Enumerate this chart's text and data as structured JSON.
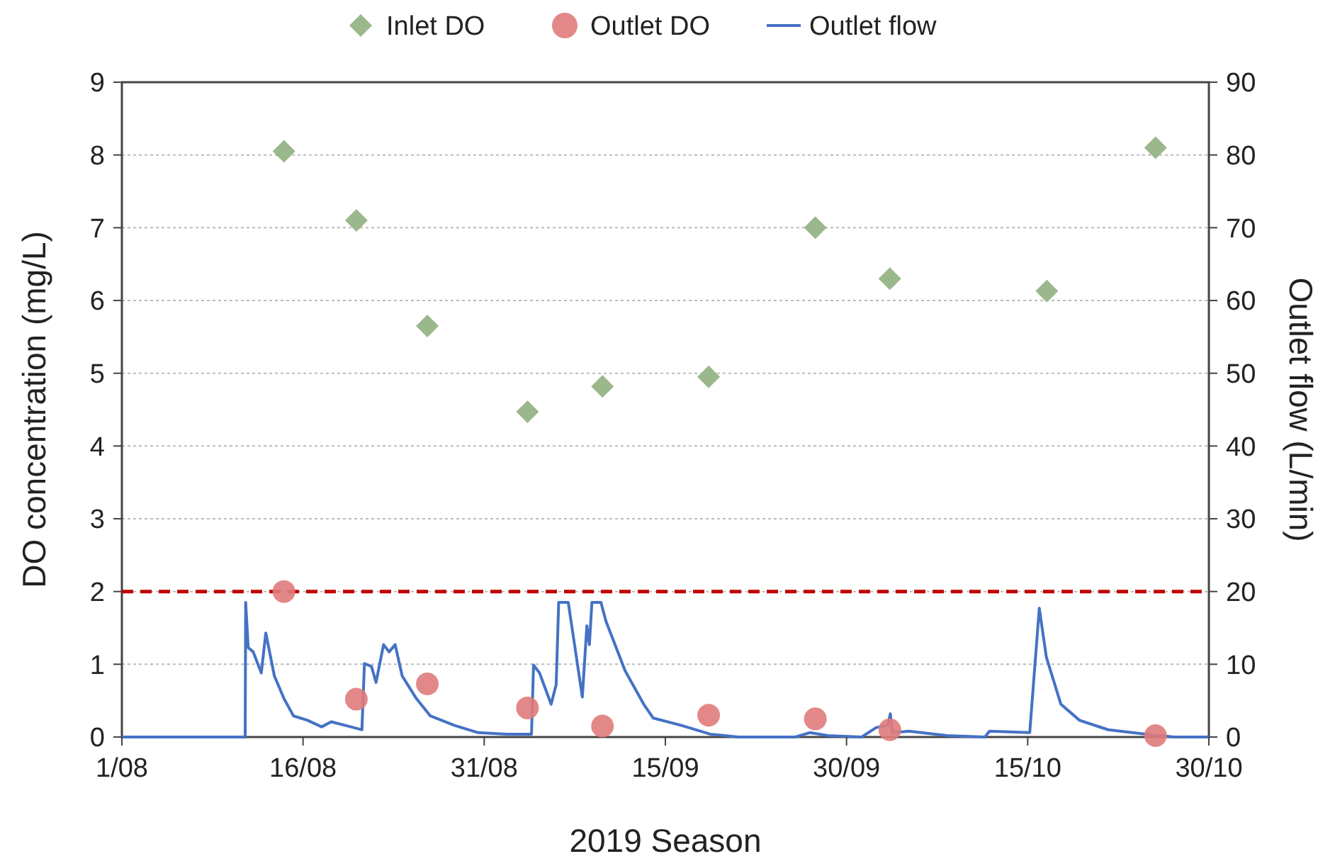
{
  "chart_data": {
    "type": "scatter",
    "xlabel": "2019 Season",
    "ylabel": "DO concentration (mg/L)",
    "y2label": "Outlet flow (L/min)",
    "xlim": [
      "2019-08-01",
      "2019-10-30"
    ],
    "xticks": [
      {
        "value": "2019-08-01",
        "label": "1/08"
      },
      {
        "value": "2019-08-16",
        "label": "16/08"
      },
      {
        "value": "2019-08-31",
        "label": "31/08"
      },
      {
        "value": "2019-09-15",
        "label": "15/09"
      },
      {
        "value": "2019-09-30",
        "label": "30/09"
      },
      {
        "value": "2019-10-15",
        "label": "15/10"
      },
      {
        "value": "2019-10-30",
        "label": "30/10"
      }
    ],
    "ylim": [
      0,
      9
    ],
    "yticks": [
      0,
      1,
      2,
      3,
      4,
      5,
      6,
      7,
      8,
      9
    ],
    "y2lim": [
      0,
      90
    ],
    "y2ticks": [
      0,
      10,
      20,
      30,
      40,
      50,
      60,
      70,
      80,
      90
    ],
    "grid": "y",
    "legend": "top",
    "ref_lines": [
      {
        "axis": "y",
        "value": 2,
        "color": "#c00000",
        "line_style": "dashed"
      }
    ],
    "series": [
      {
        "name": "Inlet DO",
        "marker": "diamond",
        "color": "#9bb88c",
        "x": [
          "2019-08-14T10:00",
          "2019-08-20T10:00",
          "2019-08-26T07:00",
          "2019-09-03T14:00",
          "2019-09-09T19:00",
          "2019-09-18T14:00",
          "2019-09-27T10:00",
          "2019-10-03T14:00",
          "2019-10-16T14:00",
          "2019-10-25T14:00"
        ],
        "values": [
          8.05,
          7.1,
          5.65,
          4.47,
          4.82,
          4.95,
          7.0,
          6.3,
          6.13,
          8.1
        ]
      },
      {
        "name": "Outlet DO",
        "marker": "circle",
        "color": "#e07b7b",
        "x": [
          "2019-08-14T10:00",
          "2019-08-20T10:00",
          "2019-08-26T07:00",
          "2019-09-03T14:00",
          "2019-09-09T19:00",
          "2019-09-18T14:00",
          "2019-09-27T10:00",
          "2019-10-03T14:00",
          "2019-10-25T14:00"
        ],
        "values": [
          2.0,
          0.52,
          0.73,
          0.4,
          0.15,
          0.3,
          0.25,
          0.1,
          0.02
        ]
      },
      {
        "name": "Outlet flow",
        "type": "line",
        "axis": "y2",
        "marker": "none",
        "line_style": "solid",
        "color": "#4472c4",
        "x": [
          "2019-08-01T00:00",
          "2019-08-11T05:00",
          "2019-08-11T06:00",
          "2019-08-11T11:00",
          "2019-08-11T21:00",
          "2019-08-12T13:00",
          "2019-08-12T22:00",
          "2019-08-13T15:00",
          "2019-08-14T10:00",
          "2019-08-15T05:00",
          "2019-08-16T09:00",
          "2019-08-17T13:00",
          "2019-08-18T08:00",
          "2019-08-19T12:00",
          "2019-08-20T21:00",
          "2019-08-21T02:00",
          "2019-08-21T16:00",
          "2019-08-22T01:00",
          "2019-08-22T16:00",
          "2019-08-23T03:00",
          "2019-08-23T15:00",
          "2019-08-24T05:00",
          "2019-08-25T09:00",
          "2019-08-26T13:00",
          "2019-08-28T13:00",
          "2019-08-30T12:00",
          "2019-09-01T20:00",
          "2019-09-03T22:00",
          "2019-09-04T02:00",
          "2019-09-04T14:00",
          "2019-09-05T13:00",
          "2019-09-05T23:00",
          "2019-09-06T04:00",
          "2019-09-06T23:00",
          "2019-09-08T03:00",
          "2019-09-08T12:00",
          "2019-09-08T17:00",
          "2019-09-08T22:00",
          "2019-09-09T16:00",
          "2019-09-10T02:00",
          "2019-09-10T11:00",
          "2019-09-11T16:00",
          "2019-09-13T05:00",
          "2019-09-14T00:00",
          "2019-09-16T08:00",
          "2019-09-18T17:00",
          "2019-09-21T01:00",
          "2019-09-25T18:00",
          "2019-09-26T23:00",
          "2019-09-28T11:00",
          "2019-10-01T06:00",
          "2019-10-02T11:00",
          "2019-10-03T10:00",
          "2019-10-03T15:00",
          "2019-10-03T19:00",
          "2019-10-05T04:00",
          "2019-10-08T08:00",
          "2019-10-11T11:00",
          "2019-10-11T20:00",
          "2019-10-15T04:00",
          "2019-10-15T23:00",
          "2019-10-16T13:00",
          "2019-10-17T18:00",
          "2019-10-19T07:00",
          "2019-10-21T16:00",
          "2019-10-24T19:00",
          "2019-10-27T03:00",
          "2019-10-30T00:00"
        ],
        "values": [
          0,
          0,
          18.5,
          12.3,
          11.7,
          8.8,
          14.3,
          8.4,
          5.3,
          2.9,
          2.3,
          1.4,
          2.1,
          1.6,
          1.0,
          10.1,
          9.7,
          7.5,
          12.7,
          11.7,
          12.7,
          8.4,
          5.3,
          2.9,
          1.6,
          0.6,
          0.4,
          0.4,
          9.9,
          8.8,
          4.5,
          7.2,
          18.5,
          18.5,
          5.5,
          15.3,
          12.7,
          18.5,
          18.5,
          15.9,
          14.3,
          9.1,
          4.5,
          2.6,
          1.6,
          0.4,
          0,
          0,
          0.6,
          0.2,
          0,
          1.3,
          1.6,
          3.2,
          0.6,
          0.8,
          0.2,
          0,
          0.8,
          0.6,
          17.7,
          11.0,
          4.5,
          2.3,
          1.0,
          0.4,
          0,
          0
        ]
      }
    ]
  }
}
